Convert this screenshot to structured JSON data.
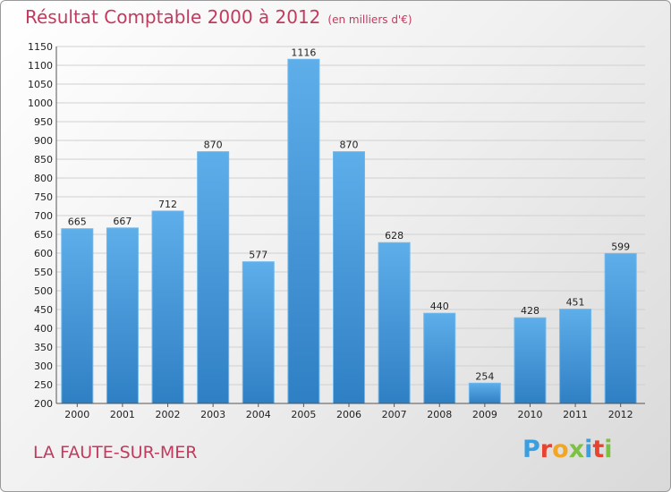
{
  "title": "Résultat Comptable 2000 à 2012",
  "subtitle": "(en milliers d'€)",
  "town": "LA FAUTE-SUR-MER",
  "logo": {
    "text": "Proxiti",
    "colors": [
      "#3a9fe0",
      "#e8432e",
      "#f2a623",
      "#7cc142",
      "#3a9fe0",
      "#e8432e",
      "#7cc142"
    ]
  },
  "colors": {
    "bar": "#4a9fde",
    "accent": "#c23a5e"
  },
  "chart_data": {
    "type": "bar",
    "title": "Résultat Comptable 2000 à 2012",
    "xlabel": "",
    "ylabel": "",
    "categories": [
      "2000",
      "2001",
      "2002",
      "2003",
      "2004",
      "2005",
      "2006",
      "2007",
      "2008",
      "2009",
      "2010",
      "2011",
      "2012"
    ],
    "values": [
      665,
      667,
      712,
      870,
      577,
      1116,
      870,
      628,
      440,
      254,
      428,
      451,
      599
    ],
    "ylim": [
      200,
      1150
    ],
    "yticks": [
      200,
      250,
      300,
      350,
      400,
      450,
      500,
      550,
      600,
      650,
      700,
      750,
      800,
      850,
      900,
      950,
      1000,
      1050,
      1100,
      1150
    ],
    "grid": true
  }
}
